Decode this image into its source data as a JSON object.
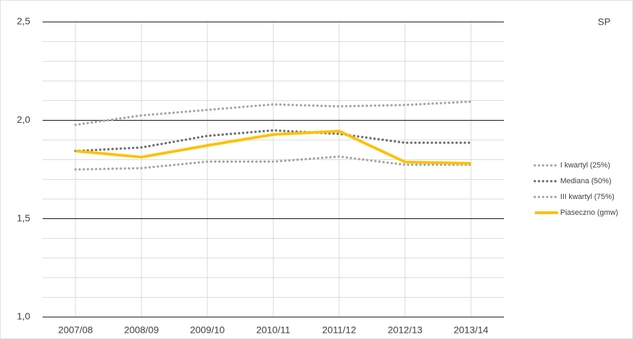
{
  "chart_data": {
    "type": "line",
    "title": "SP",
    "categories": [
      "2007/08",
      "2008/09",
      "2009/10",
      "2010/11",
      "2011/12",
      "2012/13",
      "2013/14"
    ],
    "series": [
      {
        "name": "I kwartyl (25%)",
        "color": "#a6a6a6",
        "style": "dotted",
        "values": [
          1.75,
          1.757,
          1.79,
          1.79,
          1.816,
          1.774,
          1.774
        ]
      },
      {
        "name": "Mediana (50%)",
        "color": "#6e6e6e",
        "style": "dotted",
        "values": [
          1.844,
          1.862,
          1.921,
          1.949,
          1.931,
          1.886,
          1.886
        ]
      },
      {
        "name": "III kwartyl (75%)",
        "color": "#a6a6a6",
        "style": "dotted",
        "values": [
          1.977,
          2.025,
          2.053,
          2.081,
          2.071,
          2.078,
          2.095
        ]
      },
      {
        "name": "Piaseczno (gmw)",
        "color": "#ffc000",
        "style": "solid",
        "values": [
          1.844,
          1.813,
          1.872,
          1.928,
          1.945,
          1.788,
          1.781
        ]
      }
    ],
    "ylim": [
      1.0,
      2.5
    ],
    "yticks": [
      {
        "value": 1.0,
        "label": "1,0"
      },
      {
        "value": 1.5,
        "label": "1,5"
      },
      {
        "value": 2.0,
        "label": "2,0"
      },
      {
        "value": 2.5,
        "label": "2,5"
      }
    ],
    "yminor": [
      1.1,
      1.2,
      1.3,
      1.4,
      1.6,
      1.7,
      1.8,
      1.9,
      2.1,
      2.2,
      2.3,
      2.4
    ],
    "grid": true,
    "legend": "right"
  }
}
